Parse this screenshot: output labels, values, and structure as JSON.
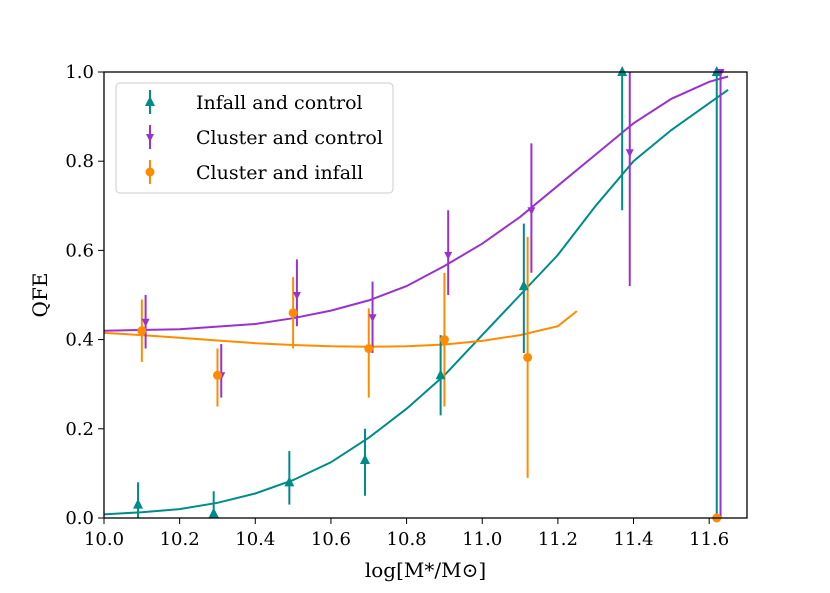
{
  "chart_data": {
    "type": "scatter",
    "title": "",
    "xlabel": "log[M*/M⊙]",
    "ylabel": "QFE",
    "xlim": [
      10.0,
      11.7
    ],
    "ylim": [
      0.0,
      1.0
    ],
    "xticks": [
      "10.0",
      "10.2",
      "10.4",
      "10.6",
      "10.8",
      "11.0",
      "11.2",
      "11.4",
      "11.6"
    ],
    "yticks": [
      "0.0",
      "0.2",
      "0.4",
      "0.6",
      "0.8",
      "1.0"
    ],
    "grid": false,
    "legend_position": "top-left",
    "series": [
      {
        "name": "Infall and control",
        "color": "#008b8b",
        "marker": "triangle-up",
        "points": [
          {
            "x": 10.09,
            "y": 0.03,
            "ylo": 0.0,
            "yhi": 0.08
          },
          {
            "x": 10.29,
            "y": 0.01,
            "ylo": 0.0,
            "yhi": 0.06
          },
          {
            "x": 10.49,
            "y": 0.08,
            "ylo": 0.03,
            "yhi": 0.15
          },
          {
            "x": 10.69,
            "y": 0.13,
            "ylo": 0.05,
            "yhi": 0.2
          },
          {
            "x": 10.89,
            "y": 0.32,
            "ylo": 0.23,
            "yhi": 0.41
          },
          {
            "x": 11.11,
            "y": 0.52,
            "ylo": 0.37,
            "yhi": 0.66
          },
          {
            "x": 11.37,
            "y": 1.0,
            "ylo": 0.69,
            "yhi": 1.0
          },
          {
            "x": 11.62,
            "y": 1.0,
            "ylo": 0.0,
            "yhi": 1.0
          }
        ],
        "fit": [
          [
            10.0,
            0.008
          ],
          [
            10.1,
            0.013
          ],
          [
            10.2,
            0.02
          ],
          [
            10.3,
            0.034
          ],
          [
            10.4,
            0.055
          ],
          [
            10.5,
            0.085
          ],
          [
            10.6,
            0.125
          ],
          [
            10.7,
            0.18
          ],
          [
            10.8,
            0.245
          ],
          [
            10.9,
            0.32
          ],
          [
            11.0,
            0.41
          ],
          [
            11.1,
            0.5
          ],
          [
            11.2,
            0.59
          ],
          [
            11.3,
            0.7
          ],
          [
            11.4,
            0.8
          ],
          [
            11.5,
            0.87
          ],
          [
            11.6,
            0.93
          ],
          [
            11.65,
            0.96
          ]
        ]
      },
      {
        "name": "Cluster and control",
        "color": "#9932cc",
        "marker": "triangle-down",
        "points": [
          {
            "x": 10.11,
            "y": 0.44,
            "ylo": 0.38,
            "yhi": 0.5
          },
          {
            "x": 10.31,
            "y": 0.32,
            "ylo": 0.27,
            "yhi": 0.39
          },
          {
            "x": 10.51,
            "y": 0.5,
            "ylo": 0.43,
            "yhi": 0.58
          },
          {
            "x": 10.71,
            "y": 0.45,
            "ylo": 0.37,
            "yhi": 0.53
          },
          {
            "x": 10.91,
            "y": 0.59,
            "ylo": 0.5,
            "yhi": 0.69
          },
          {
            "x": 11.13,
            "y": 0.69,
            "ylo": 0.55,
            "yhi": 0.84
          },
          {
            "x": 11.39,
            "y": 0.82,
            "ylo": 0.52,
            "yhi": 1.0
          },
          {
            "x": 11.63,
            "y": 1.0,
            "ylo": 0.0,
            "yhi": 1.0
          }
        ],
        "fit": [
          [
            10.0,
            0.42
          ],
          [
            10.2,
            0.423
          ],
          [
            10.4,
            0.435
          ],
          [
            10.5,
            0.448
          ],
          [
            10.6,
            0.465
          ],
          [
            10.7,
            0.488
          ],
          [
            10.8,
            0.52
          ],
          [
            10.9,
            0.565
          ],
          [
            11.0,
            0.615
          ],
          [
            11.1,
            0.675
          ],
          [
            11.2,
            0.745
          ],
          [
            11.3,
            0.815
          ],
          [
            11.4,
            0.885
          ],
          [
            11.5,
            0.94
          ],
          [
            11.6,
            0.978
          ],
          [
            11.65,
            0.99
          ]
        ]
      },
      {
        "name": "Cluster and infall",
        "color": "#ff8c00",
        "marker": "circle",
        "points": [
          {
            "x": 10.1,
            "y": 0.42,
            "ylo": 0.35,
            "yhi": 0.49
          },
          {
            "x": 10.3,
            "y": 0.32,
            "ylo": 0.25,
            "yhi": 0.38
          },
          {
            "x": 10.5,
            "y": 0.46,
            "ylo": 0.38,
            "yhi": 0.54
          },
          {
            "x": 10.7,
            "y": 0.38,
            "ylo": 0.27,
            "yhi": 0.47
          },
          {
            "x": 10.9,
            "y": 0.4,
            "ylo": 0.25,
            "yhi": 0.55
          },
          {
            "x": 11.12,
            "y": 0.36,
            "ylo": 0.09,
            "yhi": 0.63
          },
          {
            "x": 11.62,
            "y": 0.0,
            "ylo": 0.0,
            "yhi": 0.0
          }
        ],
        "fit": [
          [
            10.0,
            0.415
          ],
          [
            10.1,
            0.41
          ],
          [
            10.2,
            0.404
          ],
          [
            10.3,
            0.398
          ],
          [
            10.4,
            0.392
          ],
          [
            10.5,
            0.388
          ],
          [
            10.6,
            0.385
          ],
          [
            10.7,
            0.384
          ],
          [
            10.8,
            0.385
          ],
          [
            10.9,
            0.389
          ],
          [
            11.0,
            0.397
          ],
          [
            11.1,
            0.41
          ],
          [
            11.2,
            0.43
          ],
          [
            11.25,
            0.464
          ]
        ]
      }
    ]
  }
}
